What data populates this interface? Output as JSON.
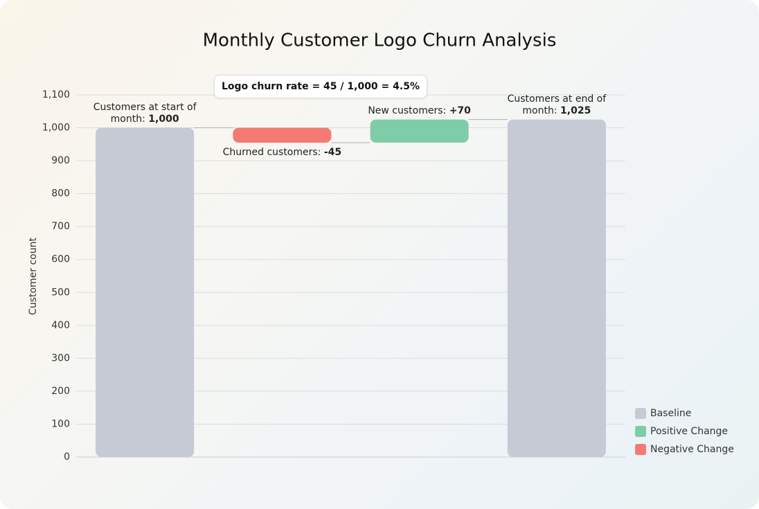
{
  "chart_data": {
    "type": "waterfall",
    "title": "Monthly Customer Logo Churn Analysis",
    "y_label": "Customer count",
    "annotation": "Logo churn rate = 45 / 1,000 = 4.5%",
    "categories": [
      null,
      null,
      null,
      null
    ],
    "labels": [
      "Customers at start of month:",
      "Churned customers:",
      "New customers:",
      "Customers at end of month:"
    ],
    "values": [
      1000,
      -45,
      70,
      1025
    ],
    "value_labels": [
      "1,000",
      "-45",
      "+70",
      "1,025"
    ],
    "legend": [
      {
        "name": "Baseline",
        "color": "#c5cad5"
      },
      {
        "name": "Positive Change",
        "color": "#7fcca9"
      },
      {
        "name": "Negative Change",
        "color": "#f47a72"
      }
    ],
    "ylim": [
      0,
      1100
    ],
    "yticks": [
      0,
      100,
      200,
      300,
      400,
      500,
      600,
      700,
      800,
      900,
      {
        "value": 1000,
        "label": "1,000"
      },
      {
        "value": 1100,
        "label": "1,100"
      }
    ],
    "grid": true
  }
}
